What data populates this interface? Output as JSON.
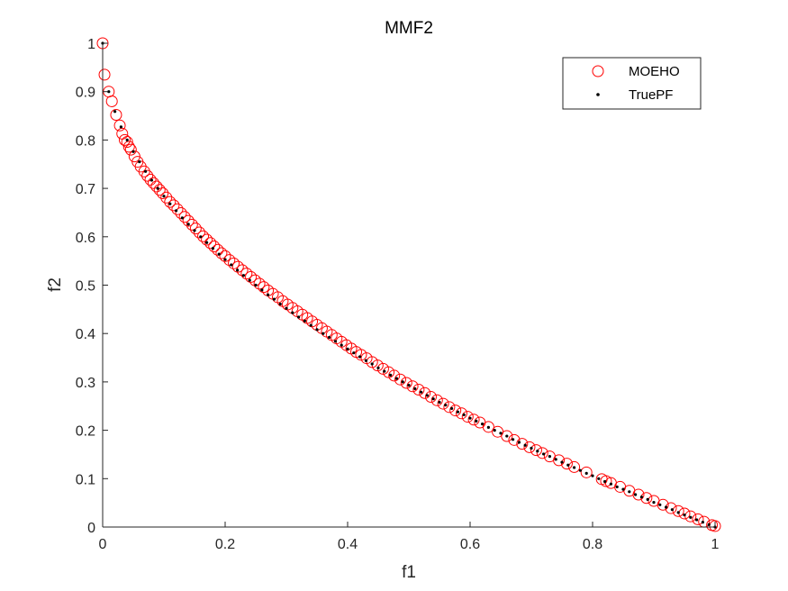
{
  "chart_data": {
    "type": "scatter",
    "title": "MMF2",
    "xlabel": "f1",
    "ylabel": "f2",
    "xlim": [
      0,
      1
    ],
    "ylim": [
      0,
      1
    ],
    "xticks": [
      0,
      0.2,
      0.4,
      0.6,
      0.8,
      1
    ],
    "xtick_labels": [
      "0",
      "0.2",
      "0.4",
      "0.6",
      "0.8",
      "1"
    ],
    "yticks": [
      0,
      0.1,
      0.2,
      0.3,
      0.4,
      0.5,
      0.6,
      0.7,
      0.8,
      0.9,
      1
    ],
    "ytick_labels": [
      "0",
      "0.1",
      "0.2",
      "0.3",
      "0.4",
      "0.5",
      "0.6",
      "0.7",
      "0.8",
      "0.9",
      "1"
    ],
    "grid": false,
    "legend_position": "top-right",
    "series": [
      {
        "name": "MOEHO",
        "marker": "open-circle",
        "color": "#ff0000",
        "x": [
          0.0,
          0.003,
          0.01,
          0.015,
          0.022,
          0.028,
          0.032,
          0.036,
          0.04,
          0.043,
          0.046,
          0.052,
          0.057,
          0.062,
          0.068,
          0.073,
          0.078,
          0.083,
          0.088,
          0.093,
          0.098,
          0.104,
          0.11,
          0.116,
          0.122,
          0.128,
          0.134,
          0.14,
          0.146,
          0.152,
          0.158,
          0.164,
          0.17,
          0.176,
          0.182,
          0.188,
          0.194,
          0.2,
          0.207,
          0.214,
          0.221,
          0.228,
          0.235,
          0.242,
          0.249,
          0.256,
          0.263,
          0.27,
          0.278,
          0.286,
          0.294,
          0.302,
          0.31,
          0.318,
          0.326,
          0.334,
          0.342,
          0.35,
          0.358,
          0.366,
          0.374,
          0.382,
          0.39,
          0.398,
          0.406,
          0.414,
          0.422,
          0.431,
          0.44,
          0.449,
          0.458,
          0.467,
          0.476,
          0.486,
          0.496,
          0.506,
          0.516,
          0.526,
          0.536,
          0.546,
          0.556,
          0.566,
          0.576,
          0.586,
          0.596,
          0.606,
          0.616,
          0.63,
          0.645,
          0.66,
          0.672,
          0.685,
          0.697,
          0.708,
          0.718,
          0.73,
          0.745,
          0.758,
          0.77,
          0.79,
          0.815,
          0.822,
          0.83,
          0.845,
          0.86,
          0.875,
          0.888,
          0.9,
          0.915,
          0.928,
          0.94,
          0.95,
          0.96,
          0.972,
          0.982,
          0.995,
          1.0
        ],
        "y": [
          1.0,
          0.935,
          0.9,
          0.88,
          0.852,
          0.83,
          0.813,
          0.8,
          0.796,
          0.786,
          0.78,
          0.766,
          0.755,
          0.745,
          0.735,
          0.726,
          0.718,
          0.711,
          0.704,
          0.697,
          0.69,
          0.681,
          0.672,
          0.665,
          0.657,
          0.649,
          0.641,
          0.633,
          0.625,
          0.617,
          0.609,
          0.601,
          0.594,
          0.587,
          0.58,
          0.573,
          0.566,
          0.56,
          0.552,
          0.545,
          0.538,
          0.531,
          0.524,
          0.517,
          0.51,
          0.503,
          0.496,
          0.489,
          0.482,
          0.475,
          0.467,
          0.46,
          0.453,
          0.446,
          0.439,
          0.432,
          0.425,
          0.418,
          0.411,
          0.404,
          0.397,
          0.39,
          0.383,
          0.376,
          0.369,
          0.362,
          0.356,
          0.349,
          0.341,
          0.334,
          0.327,
          0.32,
          0.313,
          0.305,
          0.298,
          0.291,
          0.284,
          0.277,
          0.269,
          0.262,
          0.255,
          0.248,
          0.241,
          0.235,
          0.228,
          0.222,
          0.216,
          0.207,
          0.197,
          0.188,
          0.18,
          0.172,
          0.165,
          0.159,
          0.153,
          0.146,
          0.138,
          0.131,
          0.124,
          0.113,
          0.099,
          0.095,
          0.091,
          0.083,
          0.075,
          0.067,
          0.06,
          0.054,
          0.046,
          0.039,
          0.033,
          0.028,
          0.022,
          0.016,
          0.011,
          0.004,
          0.002
        ]
      },
      {
        "name": "TruePF",
        "marker": "dot",
        "color": "#000000",
        "x": [
          0.0,
          0.01,
          0.02,
          0.03,
          0.04,
          0.05,
          0.06,
          0.07,
          0.08,
          0.09,
          0.1,
          0.11,
          0.12,
          0.13,
          0.14,
          0.15,
          0.16,
          0.17,
          0.18,
          0.19,
          0.2,
          0.21,
          0.22,
          0.23,
          0.24,
          0.25,
          0.26,
          0.27,
          0.28,
          0.29,
          0.3,
          0.31,
          0.32,
          0.33,
          0.34,
          0.35,
          0.36,
          0.37,
          0.38,
          0.39,
          0.4,
          0.41,
          0.42,
          0.43,
          0.44,
          0.45,
          0.46,
          0.47,
          0.48,
          0.49,
          0.5,
          0.51,
          0.52,
          0.53,
          0.54,
          0.55,
          0.56,
          0.57,
          0.58,
          0.59,
          0.6,
          0.61,
          0.62,
          0.63,
          0.64,
          0.65,
          0.66,
          0.67,
          0.68,
          0.69,
          0.7,
          0.71,
          0.72,
          0.73,
          0.74,
          0.75,
          0.76,
          0.77,
          0.78,
          0.79,
          0.8,
          0.81,
          0.82,
          0.83,
          0.84,
          0.85,
          0.86,
          0.87,
          0.88,
          0.89,
          0.9,
          0.91,
          0.92,
          0.93,
          0.94,
          0.95,
          0.96,
          0.97,
          0.98,
          0.99,
          1.0
        ],
        "y": [
          1.0,
          0.9,
          0.859,
          0.827,
          0.8,
          0.776,
          0.755,
          0.735,
          0.717,
          0.7,
          0.684,
          0.668,
          0.654,
          0.639,
          0.626,
          0.613,
          0.6,
          0.588,
          0.576,
          0.564,
          0.553,
          0.542,
          0.531,
          0.52,
          0.51,
          0.5,
          0.49,
          0.48,
          0.471,
          0.461,
          0.452,
          0.443,
          0.434,
          0.426,
          0.417,
          0.408,
          0.4,
          0.392,
          0.384,
          0.376,
          0.368,
          0.36,
          0.352,
          0.344,
          0.337,
          0.329,
          0.322,
          0.314,
          0.307,
          0.3,
          0.293,
          0.286,
          0.279,
          0.272,
          0.265,
          0.258,
          0.252,
          0.245,
          0.238,
          0.232,
          0.225,
          0.219,
          0.213,
          0.206,
          0.2,
          0.194,
          0.188,
          0.181,
          0.175,
          0.169,
          0.163,
          0.157,
          0.151,
          0.146,
          0.14,
          0.134,
          0.128,
          0.123,
          0.117,
          0.111,
          0.106,
          0.1,
          0.094,
          0.089,
          0.083,
          0.078,
          0.073,
          0.067,
          0.062,
          0.057,
          0.051,
          0.046,
          0.041,
          0.036,
          0.03,
          0.025,
          0.02,
          0.015,
          0.01,
          0.005,
          0.0
        ]
      }
    ]
  }
}
